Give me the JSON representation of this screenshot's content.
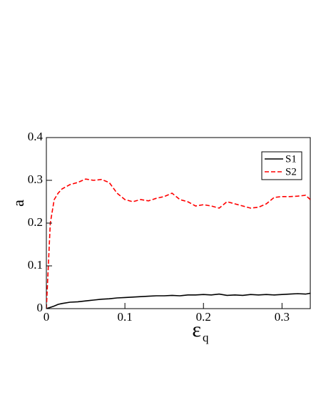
{
  "chart_data": {
    "type": "line",
    "xlabel": "ε",
    "xlabel_subscript": "q",
    "ylabel": "a",
    "x": [
      0,
      0.005,
      0.01,
      0.015,
      0.02,
      0.03,
      0.04,
      0.05,
      0.06,
      0.07,
      0.08,
      0.09,
      0.1,
      0.11,
      0.12,
      0.13,
      0.14,
      0.15,
      0.16,
      0.17,
      0.18,
      0.19,
      0.2,
      0.21,
      0.22,
      0.23,
      0.24,
      0.25,
      0.26,
      0.27,
      0.28,
      0.29,
      0.3,
      0.31,
      0.32,
      0.33,
      0.336
    ],
    "series": [
      {
        "name": "S1",
        "color": "#000000",
        "linestyle": "solid",
        "values": [
          0,
          0.003,
          0.006,
          0.01,
          0.012,
          0.015,
          0.016,
          0.018,
          0.02,
          0.022,
          0.023,
          0.025,
          0.026,
          0.027,
          0.028,
          0.029,
          0.03,
          0.03,
          0.031,
          0.03,
          0.032,
          0.032,
          0.033,
          0.032,
          0.034,
          0.031,
          0.032,
          0.031,
          0.033,
          0.032,
          0.033,
          0.032,
          0.033,
          0.034,
          0.035,
          0.034,
          0.036
        ]
      },
      {
        "name": "S2",
        "color": "#ff0000",
        "linestyle": "dashed",
        "values": [
          0,
          0.2,
          0.255,
          0.27,
          0.28,
          0.29,
          0.295,
          0.303,
          0.3,
          0.302,
          0.295,
          0.27,
          0.255,
          0.25,
          0.255,
          0.252,
          0.258,
          0.262,
          0.27,
          0.255,
          0.25,
          0.24,
          0.243,
          0.24,
          0.235,
          0.25,
          0.245,
          0.24,
          0.235,
          0.237,
          0.245,
          0.26,
          0.262,
          0.262,
          0.263,
          0.265,
          0.255
        ]
      }
    ],
    "xlim": [
      0,
      0.336
    ],
    "xticks": [
      0,
      0.1,
      0.2,
      0.3
    ],
    "ylim": [
      0,
      0.4
    ],
    "yticks": [
      0,
      0.1,
      0.2,
      0.3,
      0.4
    ],
    "legend": "upper right",
    "grid": false
  }
}
